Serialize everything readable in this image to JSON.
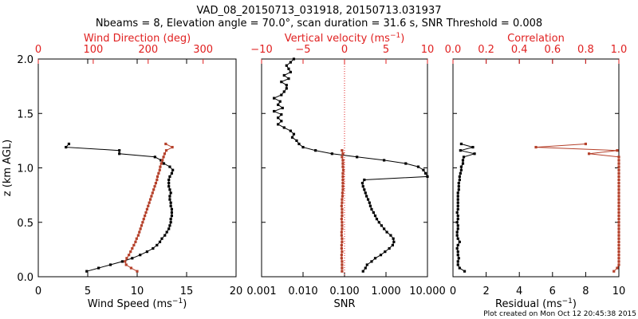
{
  "header": {
    "title": "VAD_08_20150713_031918, 20150713.031937",
    "subtitle": "Nbeams = 8, Elevation angle = 70.0°, scan duration = 31.6 s, SNR Threshold = 0.008"
  },
  "footer": {
    "credit": "Plot created on Mon Oct 12 20:45:38 2015"
  },
  "colors": {
    "black": "#000000",
    "red": "#b5402a",
    "axis_red": "#e02020"
  },
  "chart_data": [
    {
      "type": "line",
      "panel": "wind",
      "ylabel": "z (km AGL)",
      "ylim": [
        0,
        2
      ],
      "yticks": [
        0.0,
        0.5,
        1.0,
        1.5,
        2.0
      ],
      "ytick_labels": [
        "0.0",
        "0.5",
        "1.0",
        "1.5",
        "2.0"
      ],
      "bottom_axis": {
        "label": "Wind Speed (ms",
        "label_sup": "−1",
        "label_end": ")",
        "lim": [
          0,
          20
        ],
        "ticks": [
          0,
          5,
          10,
          15,
          20
        ],
        "tick_labels": [
          "0",
          "5",
          "10",
          "15",
          "20"
        ]
      },
      "top_axis": {
        "label": "Wind Direction (deg)",
        "lim": [
          0,
          360
        ],
        "ticks": [
          0,
          100,
          200,
          300
        ],
        "tick_labels": [
          "0",
          "100",
          "200",
          "300"
        ]
      },
      "series": [
        {
          "axis": "bottom",
          "color": "black",
          "z": [
            0.05,
            0.08,
            0.11,
            0.14,
            0.17,
            0.2,
            0.23,
            0.26,
            0.29,
            0.32,
            0.35,
            0.38,
            0.41,
            0.44,
            0.47,
            0.5,
            0.53,
            0.56,
            0.59,
            0.62,
            0.65,
            0.68,
            0.71,
            0.74,
            0.77,
            0.8,
            0.83,
            0.86,
            0.89,
            0.92,
            0.95,
            0.98,
            1.01,
            1.04,
            1.07,
            1.1,
            1.13,
            1.16,
            1.19,
            1.22
          ],
          "x": [
            4.9,
            6.1,
            7.3,
            8.5,
            9.5,
            10.3,
            11.0,
            11.6,
            12.0,
            12.3,
            12.5,
            12.8,
            13.0,
            13.2,
            13.3,
            13.4,
            13.4,
            13.5,
            13.5,
            13.5,
            13.4,
            13.4,
            13.3,
            13.3,
            13.4,
            13.3,
            13.2,
            13.2,
            13.2,
            13.3,
            13.5,
            13.6,
            13.3,
            12.7,
            12.4,
            11.8,
            8.2,
            8.2,
            2.8,
            3.1
          ]
        },
        {
          "axis": "top",
          "color": "red",
          "z": [
            0.05,
            0.08,
            0.11,
            0.14,
            0.17,
            0.2,
            0.23,
            0.26,
            0.29,
            0.32,
            0.35,
            0.38,
            0.41,
            0.44,
            0.47,
            0.5,
            0.53,
            0.56,
            0.59,
            0.62,
            0.65,
            0.68,
            0.71,
            0.74,
            0.77,
            0.8,
            0.83,
            0.86,
            0.89,
            0.92,
            0.95,
            0.98,
            1.01,
            1.04,
            1.07,
            1.1,
            1.13,
            1.16,
            1.19,
            1.22
          ],
          "x": [
            180,
            169,
            160,
            158,
            161,
            165,
            168,
            171,
            174,
            177,
            179,
            182,
            184,
            186,
            188,
            190,
            192,
            194,
            196,
            198,
            200,
            202,
            204,
            206,
            208,
            210,
            212,
            214,
            216,
            217,
            219,
            221,
            222,
            224,
            226,
            228,
            230,
            233,
            244,
            232
          ]
        }
      ]
    },
    {
      "type": "line",
      "panel": "vertical",
      "ylim": [
        0,
        2
      ],
      "bottom_axis": {
        "label": "SNR",
        "scale": "log",
        "lim": [
          0.001,
          10
        ],
        "ticks": [
          0.001,
          0.01,
          0.1,
          1,
          10
        ],
        "tick_labels": [
          "0.001",
          "0.010",
          "0.100",
          "1.000",
          "10.000"
        ]
      },
      "top_axis": {
        "label": "Vertical velocity (ms",
        "label_sup": "−1",
        "label_end": ")",
        "lim": [
          -10,
          10
        ],
        "ticks": [
          -10,
          -5,
          0,
          5,
          10
        ],
        "tick_labels": [
          "−10",
          "−5",
          "0",
          "5",
          "10"
        ]
      },
      "reference_line": {
        "axis": "top",
        "value": 0,
        "style": "dotted"
      },
      "series": [
        {
          "axis": "bottom",
          "color": "black",
          "z": [
            0.05,
            0.08,
            0.11,
            0.14,
            0.17,
            0.2,
            0.23,
            0.26,
            0.29,
            0.32,
            0.35,
            0.38,
            0.41,
            0.44,
            0.47,
            0.5,
            0.53,
            0.56,
            0.59,
            0.62,
            0.65,
            0.68,
            0.71,
            0.74,
            0.77,
            0.8,
            0.83,
            0.86,
            0.89,
            0.92,
            0.95,
            0.98,
            1.01,
            1.04,
            1.07,
            1.1,
            1.13,
            1.16,
            1.19,
            1.22,
            1.25,
            1.28,
            1.31,
            1.34,
            1.37,
            1.4,
            1.43,
            1.46,
            1.49,
            1.52,
            1.55,
            1.58,
            1.61,
            1.64,
            1.67,
            1.7,
            1.73,
            1.76,
            1.79,
            1.82,
            1.85,
            1.88,
            1.91,
            1.94,
            1.97,
            2.0
          ],
          "x": [
            0.28,
            0.32,
            0.35,
            0.45,
            0.55,
            0.75,
            0.95,
            1.2,
            1.45,
            1.55,
            1.5,
            1.3,
            1.05,
            0.9,
            0.78,
            0.68,
            0.6,
            0.55,
            0.5,
            0.45,
            0.42,
            0.4,
            0.37,
            0.34,
            0.32,
            0.3,
            0.28,
            0.27,
            0.3,
            10.0,
            9.0,
            8.0,
            6.0,
            3.0,
            0.9,
            0.2,
            0.05,
            0.02,
            0.01,
            0.008,
            0.007,
            0.0055,
            0.006,
            0.005,
            0.0035,
            0.0025,
            0.003,
            0.0025,
            0.003,
            0.002,
            0.0032,
            0.0025,
            0.0028,
            0.002,
            0.003,
            0.0035,
            0.004,
            0.004,
            0.003,
            0.0045,
            0.0035,
            0.005,
            0.0045,
            0.004,
            0.005,
            0.006
          ]
        },
        {
          "axis": "top",
          "color": "red",
          "z": [
            0.05,
            0.08,
            0.11,
            0.14,
            0.17,
            0.2,
            0.23,
            0.26,
            0.29,
            0.32,
            0.35,
            0.38,
            0.41,
            0.44,
            0.47,
            0.5,
            0.53,
            0.56,
            0.59,
            0.62,
            0.65,
            0.68,
            0.71,
            0.74,
            0.77,
            0.8,
            0.83,
            0.86,
            0.89,
            0.92,
            0.95,
            0.98,
            1.01,
            1.04,
            1.07,
            1.1,
            1.13,
            1.16
          ],
          "x": [
            -0.3,
            -0.3,
            -0.3,
            -0.3,
            -0.35,
            -0.35,
            -0.3,
            -0.35,
            -0.35,
            -0.3,
            -0.3,
            -0.35,
            -0.35,
            -0.3,
            -0.3,
            -0.3,
            -0.35,
            -0.3,
            -0.3,
            -0.3,
            -0.35,
            -0.3,
            -0.3,
            -0.25,
            -0.25,
            -0.2,
            -0.2,
            -0.2,
            -0.2,
            -0.2,
            -0.2,
            -0.15,
            -0.2,
            -0.2,
            -0.2,
            -0.3,
            -0.2,
            -0.3
          ]
        }
      ]
    },
    {
      "type": "line",
      "panel": "quality",
      "ylim": [
        0,
        2
      ],
      "bottom_axis": {
        "label": "Residual (ms",
        "label_sup": "−1",
        "label_end": ")",
        "lim": [
          0,
          10
        ],
        "ticks": [
          0,
          2,
          4,
          6,
          8,
          10
        ],
        "tick_labels": [
          "0",
          "2",
          "4",
          "6",
          "8",
          "10"
        ]
      },
      "top_axis": {
        "label": "Correlation",
        "lim": [
          0,
          1
        ],
        "ticks": [
          0,
          0.2,
          0.4,
          0.6,
          0.8,
          1.0
        ],
        "tick_labels": [
          "0.0",
          "0.2",
          "0.4",
          "0.6",
          "0.8",
          "1.0"
        ]
      },
      "series": [
        {
          "axis": "bottom",
          "color": "black",
          "z": [
            0.05,
            0.08,
            0.11,
            0.14,
            0.17,
            0.2,
            0.23,
            0.26,
            0.29,
            0.32,
            0.35,
            0.38,
            0.41,
            0.44,
            0.47,
            0.5,
            0.53,
            0.56,
            0.59,
            0.62,
            0.65,
            0.68,
            0.71,
            0.74,
            0.77,
            0.8,
            0.83,
            0.86,
            0.89,
            0.92,
            0.95,
            0.98,
            1.01,
            1.04,
            1.07,
            1.1,
            1.13,
            1.16,
            1.19,
            1.22
          ],
          "x": [
            0.7,
            0.4,
            0.3,
            0.3,
            0.35,
            0.3,
            0.3,
            0.25,
            0.3,
            0.4,
            0.3,
            0.25,
            0.25,
            0.3,
            0.3,
            0.25,
            0.3,
            0.3,
            0.25,
            0.3,
            0.3,
            0.3,
            0.3,
            0.3,
            0.3,
            0.35,
            0.35,
            0.35,
            0.4,
            0.4,
            0.45,
            0.5,
            0.5,
            0.6,
            0.6,
            0.65,
            1.3,
            0.45,
            1.2,
            0.5
          ]
        },
        {
          "axis": "top",
          "color": "red",
          "z": [
            0.05,
            0.08,
            0.11,
            0.14,
            0.17,
            0.2,
            0.23,
            0.26,
            0.29,
            0.32,
            0.35,
            0.38,
            0.41,
            0.44,
            0.47,
            0.5,
            0.53,
            0.56,
            0.59,
            0.62,
            0.65,
            0.68,
            0.71,
            0.74,
            0.77,
            0.8,
            0.83,
            0.86,
            0.89,
            0.92,
            0.95,
            0.98,
            1.01,
            1.04,
            1.07,
            1.1,
            1.13,
            1.16,
            1.19,
            1.22
          ],
          "x": [
            0.97,
            0.99,
            1.0,
            1.0,
            1.0,
            1.0,
            1.0,
            1.0,
            1.0,
            1.0,
            1.0,
            1.0,
            1.0,
            1.0,
            1.0,
            1.0,
            1.0,
            1.0,
            1.0,
            1.0,
            1.0,
            1.0,
            1.0,
            1.0,
            1.0,
            1.0,
            1.0,
            1.0,
            1.0,
            1.0,
            1.0,
            1.0,
            1.0,
            1.0,
            1.0,
            1.0,
            0.82,
            0.99,
            0.5,
            0.8
          ]
        }
      ]
    }
  ]
}
